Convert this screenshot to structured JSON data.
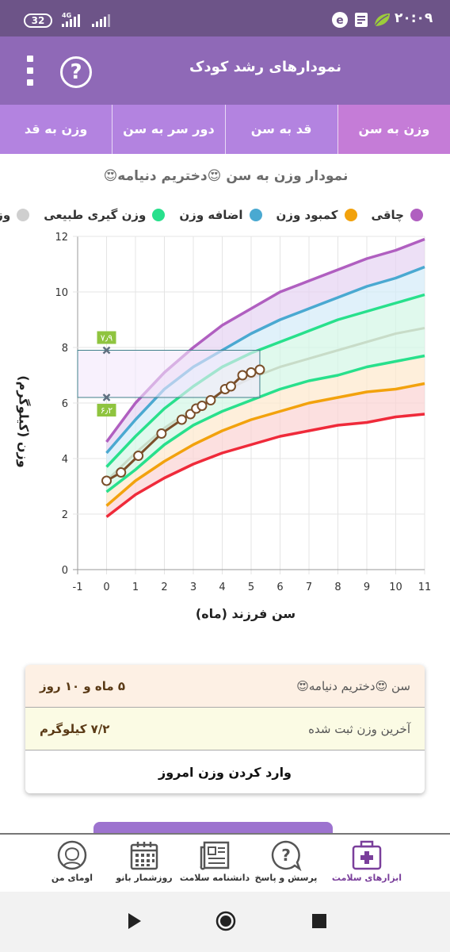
{
  "status_bar": {
    "battery": "32",
    "network": "4G",
    "time": "۲۰:۰۹"
  },
  "app_bar": {
    "title": "نمودارهای رشد کودک",
    "help_symbol": "?"
  },
  "tabs": [
    {
      "label": "وزن به سن",
      "active": true
    },
    {
      "label": "قد به سن",
      "active": false
    },
    {
      "label": "دور سر به سن",
      "active": false
    },
    {
      "label": "وزن به قد",
      "active": false
    }
  ],
  "chart_heading": "نمودار وزن به سن 😍دختریم دنیامه😍",
  "legend": [
    {
      "label": "چاقی",
      "color": "#b05fc0"
    },
    {
      "label": "کمبود وزن",
      "color": "#f2a20d"
    },
    {
      "label": "اضافه وزن",
      "color": "#4aa9d1"
    },
    {
      "label": "وزن گیری طبیعی",
      "color": "#28e08c"
    },
    {
      "label": "وزن میانگین",
      "color": "#cfcfcf"
    }
  ],
  "chart_data": {
    "type": "line",
    "title": "نمودار وزن به سن 😍دختریم دنیامه😍",
    "xlabel": "سن فرزند (ماه)",
    "ylabel": "وزن (کیلوگرم)",
    "xlim": [
      -1,
      11
    ],
    "ylim": [
      0,
      12
    ],
    "xticks": [
      "-1",
      "0",
      "1",
      "2",
      "3",
      "4",
      "5",
      "6",
      "7",
      "8",
      "9",
      "10",
      "11"
    ],
    "yticks": [
      "0",
      "2",
      "4",
      "6",
      "8",
      "10",
      "12"
    ],
    "grid": true,
    "x": [
      0,
      1,
      2,
      3,
      4,
      5,
      6,
      7,
      8,
      9,
      10,
      11
    ],
    "curves": [
      {
        "name": "چاقی",
        "color": "#b05fc0",
        "values": [
          4.6,
          6.0,
          7.1,
          8.0,
          8.8,
          9.4,
          10.0,
          10.4,
          10.8,
          11.2,
          11.5,
          11.9
        ]
      },
      {
        "name": "اضافه وزن",
        "color": "#4aa9d1",
        "values": [
          4.2,
          5.4,
          6.5,
          7.3,
          7.9,
          8.5,
          9.0,
          9.4,
          9.8,
          10.2,
          10.5,
          10.9
        ]
      },
      {
        "name": "وزن گیری طبیعی",
        "color": "#28e08c",
        "values": [
          3.7,
          4.8,
          5.8,
          6.6,
          7.3,
          7.8,
          8.2,
          8.6,
          9.0,
          9.3,
          9.6,
          9.9
        ]
      },
      {
        "name": "وزن میانگین",
        "color": "#c8dcc8",
        "values": [
          3.2,
          4.2,
          5.1,
          5.8,
          6.4,
          6.9,
          7.3,
          7.6,
          7.9,
          8.2,
          8.5,
          8.7
        ]
      },
      {
        "name": "وزن گیری طبیعی",
        "color": "#28e08c",
        "values": [
          2.8,
          3.6,
          4.5,
          5.2,
          5.7,
          6.1,
          6.5,
          6.8,
          7.0,
          7.3,
          7.5,
          7.7
        ]
      },
      {
        "name": "کمبود وزن",
        "color": "#f2a20d",
        "values": [
          2.3,
          3.2,
          3.9,
          4.5,
          5.0,
          5.4,
          5.7,
          6.0,
          6.2,
          6.4,
          6.5,
          6.7
        ]
      },
      {
        "name": "کمبود وزن",
        "color": "#ef2a3a",
        "values": [
          1.9,
          2.7,
          3.3,
          3.8,
          4.2,
          4.5,
          4.8,
          5.0,
          5.2,
          5.3,
          5.5,
          5.6
        ]
      }
    ],
    "bands": [
      {
        "from": 0,
        "to": 1,
        "color": "#e7d6f3"
      },
      {
        "from": 1,
        "to": 2,
        "color": "#d5ecf8"
      },
      {
        "from": 2,
        "to": 4,
        "color": "#d6f7e7"
      },
      {
        "from": 4,
        "to": 5,
        "color": "#fde9cf"
      },
      {
        "from": 5,
        "to": 6,
        "color": "#fbd6d6"
      }
    ],
    "measurements": {
      "name": "دختریم دنیامه",
      "x": [
        0,
        0.5,
        1.1,
        1.9,
        2.6,
        2.9,
        3.1,
        3.3,
        3.6,
        4.1,
        4.3,
        4.7,
        5.0,
        5.3
      ],
      "y": [
        3.2,
        3.5,
        4.1,
        4.9,
        5.4,
        5.6,
        5.8,
        5.9,
        6.1,
        6.5,
        6.6,
        7.0,
        7.1,
        7.2
      ]
    },
    "range_box": {
      "x": [
        -1,
        5.3
      ],
      "y": [
        6.2,
        7.9
      ],
      "upper_label": "۷٫۹",
      "lower_label": "۶٫۲"
    }
  },
  "info_card": {
    "age_label": "سن 😍دختریم دنیامه😍",
    "age_value": "۵ ماه و ۱۰ روز",
    "weight_label": "آخرین وزن ثبت شده",
    "weight_value": "۷/۲ کیلوگرم",
    "action": "وارد کردن وزن امروز"
  },
  "bottom_nav": [
    {
      "label": "ابزارهای سلامت",
      "icon": "health-kit-icon",
      "active": true
    },
    {
      "label": "پرسش و پاسخ",
      "icon": "question-bubble-icon",
      "active": false
    },
    {
      "label": "دانشنامه سلامت",
      "icon": "newspaper-icon",
      "active": false
    },
    {
      "label": "روزشمار بانو",
      "icon": "calendar-icon",
      "active": false
    },
    {
      "label": "اومای من",
      "icon": "profile-icon",
      "active": false
    }
  ],
  "accent_color": "#8f69b7"
}
